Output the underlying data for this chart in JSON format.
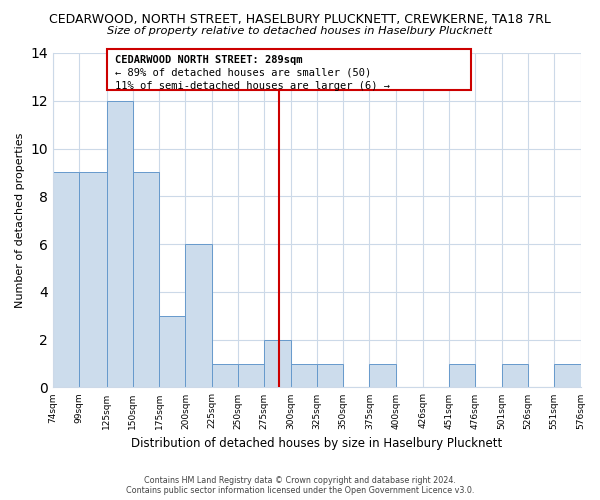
{
  "title_line1": "CEDARWOOD, NORTH STREET, HASELBURY PLUCKNETT, CREWKERNE, TA18 7RL",
  "title_line2": "Size of property relative to detached houses in Haselbury Plucknett",
  "xlabel": "Distribution of detached houses by size in Haselbury Plucknett",
  "ylabel": "Number of detached properties",
  "bins": [
    74,
    99,
    125,
    150,
    175,
    200,
    225,
    250,
    275,
    300,
    325,
    350,
    375,
    400,
    426,
    451,
    476,
    501,
    526,
    551,
    576
  ],
  "counts": [
    9,
    9,
    12,
    9,
    3,
    6,
    1,
    1,
    2,
    1,
    1,
    0,
    1,
    0,
    0,
    1,
    0,
    1,
    0,
    1
  ],
  "bar_color": "#ccdcec",
  "bar_edgecolor": "#6699cc",
  "vline_x": 289,
  "vline_color": "#cc0000",
  "annotation_title": "CEDARWOOD NORTH STREET: 289sqm",
  "annotation_line2": "← 89% of detached houses are smaller (50)",
  "annotation_line3": "11% of semi-detached houses are larger (6) →",
  "ylim": [
    0,
    14
  ],
  "yticks": [
    0,
    2,
    4,
    6,
    8,
    10,
    12,
    14
  ],
  "footer_line1": "Contains HM Land Registry data © Crown copyright and database right 2024.",
  "footer_line2": "Contains public sector information licensed under the Open Government Licence v3.0.",
  "background_color": "#ffffff",
  "grid_color": "#ccd9e8"
}
